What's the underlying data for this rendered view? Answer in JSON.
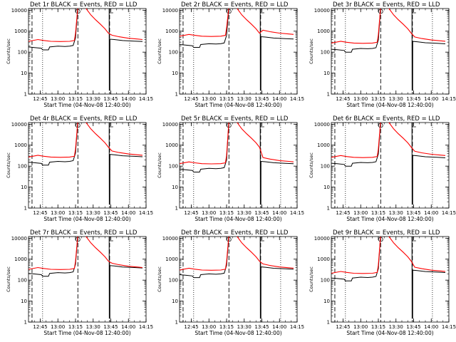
{
  "chart_data": {
    "type": "line",
    "y_scale": "log",
    "ylim": [
      1,
      12000
    ],
    "y_ticks": [
      "1",
      "10",
      "100",
      "1000",
      "10000"
    ],
    "x_ticks": [
      "12:45",
      "13:00",
      "13:15",
      "13:30",
      "13:45",
      "14:00",
      "14:15"
    ],
    "xlim_minutes": [
      -5,
      95
    ],
    "ylabel": "Counts/sec",
    "xlabel": "Start Time (04-Nov-08 12:40:00)",
    "colors": {
      "events": "#000000",
      "lld": "#ff0000"
    },
    "dashed_lines_min": [
      -2,
      37,
      64
    ],
    "dotted_lines_min": [
      7,
      81
    ],
    "markers": [
      {
        "shape": "circle",
        "x": 37
      },
      {
        "shape": "bracket",
        "x": 64
      }
    ],
    "panels": [
      {
        "title": "Det 1r BLACK = Events, RED = LLD",
        "events_base": 320,
        "lld_base": 400
      },
      {
        "title": "Det 2r BLACK = Events, RED = LLD",
        "events_base": 420,
        "lld_base": 700
      },
      {
        "title": "Det 3r BLACK = Events, RED = LLD",
        "events_base": 250,
        "lld_base": 330
      },
      {
        "title": "Det 4r BLACK = Events, RED = LLD",
        "events_base": 280,
        "lld_base": 330
      },
      {
        "title": "Det 5r BLACK = Events, RED = LLD",
        "events_base": 130,
        "lld_base": 160
      },
      {
        "title": "Det 6r BLACK = Events, RED = LLD",
        "events_base": 250,
        "lld_base": 320
      },
      {
        "title": "Det 7r BLACK = Events, RED = LLD",
        "events_base": 380,
        "lld_base": 400
      },
      {
        "title": "Det 8r BLACK = Events, RED = LLD",
        "events_base": 330,
        "lld_base": 370
      },
      {
        "title": "Det 9r BLACK = Events, RED = LLD",
        "events_base": 230,
        "lld_base": 260
      }
    ]
  }
}
